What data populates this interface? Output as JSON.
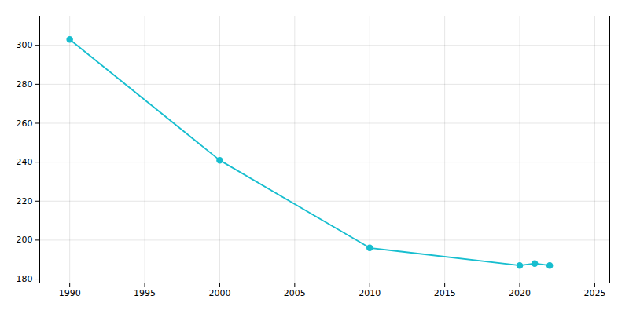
{
  "chart_data": {
    "type": "line",
    "x": [
      1990,
      2000,
      2010,
      2020,
      2021,
      2022
    ],
    "values": [
      303,
      241,
      196,
      187,
      188,
      187
    ],
    "color": "#17becf",
    "marker": "circle",
    "xlim": [
      1988,
      2026
    ],
    "ylim": [
      178,
      315
    ],
    "xticks": [
      1990,
      1995,
      2000,
      2005,
      2010,
      2015,
      2020,
      2025
    ],
    "yticks": [
      180,
      200,
      220,
      240,
      260,
      280,
      300
    ],
    "grid": true
  }
}
